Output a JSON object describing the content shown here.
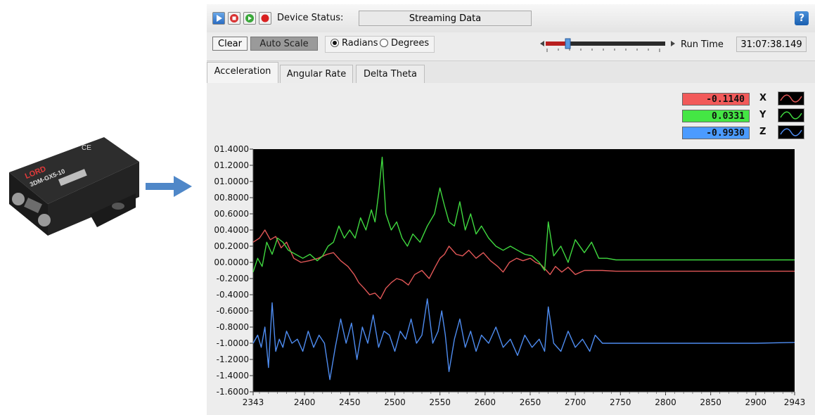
{
  "device": {
    "brand": "LORD",
    "model": "MicroStrain 3DM-GX5-10",
    "model_label": "3DM-GX5-10"
  },
  "toolbar": {
    "device_status_label": "Device Status:",
    "device_status_value": "Streaming Data",
    "help_label": "?",
    "clear_label": "Clear",
    "auto_scale_label": "Auto Scale",
    "radians_label": "Radians",
    "degrees_label": "Degrees",
    "selected_unit": "Radians",
    "run_time_label": "Run Time",
    "run_time_value": "31:07:38.149"
  },
  "tabs": [
    {
      "label": "Acceleration",
      "active": true
    },
    {
      "label": "Angular Rate",
      "active": false
    },
    {
      "label": "Delta Theta",
      "active": false
    }
  ],
  "readouts": [
    {
      "axis": "X",
      "value": "-0.1140",
      "color": "#f25a5a"
    },
    {
      "axis": "Y",
      "value": "0.0331",
      "color": "#44e644"
    },
    {
      "axis": "Z",
      "value": "-0.9930",
      "color": "#4b9bff"
    }
  ],
  "chart_data": {
    "type": "line",
    "ytick_labels": [
      "01.4000",
      "01.2000",
      "01.0000",
      "00.8000",
      "00.6000",
      "00.4000",
      "00.2000",
      "00.0000",
      "-0.2000",
      "-0.4000",
      "-0.6000",
      "-0.8000",
      "-1.0000",
      "-1.2000",
      "-1.4000",
      "-1.6000"
    ],
    "xtick_labels": [
      "2343",
      "2400",
      "2450",
      "2500",
      "2550",
      "2600",
      "2650",
      "2700",
      "2750",
      "2800",
      "2850",
      "2900",
      "2943"
    ],
    "xlim": [
      2343,
      2943
    ],
    "ylim": [
      -1.6,
      1.4
    ],
    "series": [
      {
        "name": "X",
        "color": "#e15757",
        "x": [
          2343,
          2350,
          2356,
          2362,
          2368,
          2374,
          2380,
          2388,
          2396,
          2405,
          2415,
          2425,
          2432,
          2440,
          2448,
          2455,
          2460,
          2466,
          2472,
          2478,
          2484,
          2490,
          2496,
          2502,
          2508,
          2515,
          2522,
          2530,
          2538,
          2545,
          2550,
          2555,
          2560,
          2568,
          2575,
          2582,
          2590,
          2598,
          2606,
          2614,
          2620,
          2627,
          2635,
          2642,
          2650,
          2656,
          2662,
          2668,
          2672,
          2678,
          2685,
          2692,
          2700,
          2710,
          2720,
          2730,
          2745,
          2760,
          2800,
          2850,
          2900,
          2943
        ],
        "y": [
          0.25,
          0.3,
          0.4,
          0.28,
          0.32,
          0.18,
          0.25,
          0.05,
          0.0,
          0.02,
          0.05,
          0.1,
          0.12,
          0.02,
          -0.05,
          -0.15,
          -0.25,
          -0.32,
          -0.4,
          -0.38,
          -0.45,
          -0.32,
          -0.25,
          -0.2,
          -0.22,
          -0.28,
          -0.15,
          -0.1,
          -0.2,
          -0.05,
          0.05,
          0.1,
          0.2,
          0.1,
          0.08,
          0.15,
          0.05,
          0.12,
          0.02,
          -0.05,
          -0.12,
          0.0,
          0.05,
          0.02,
          0.05,
          0.0,
          -0.03,
          -0.1,
          -0.15,
          -0.05,
          -0.12,
          -0.06,
          -0.15,
          -0.1,
          -0.1,
          -0.1,
          -0.11,
          -0.11,
          -0.11,
          -0.11,
          -0.11,
          -0.11
        ]
      },
      {
        "name": "Y",
        "color": "#3fd83f",
        "x": [
          2343,
          2348,
          2353,
          2358,
          2364,
          2370,
          2376,
          2382,
          2390,
          2398,
          2406,
          2414,
          2420,
          2426,
          2432,
          2438,
          2444,
          2450,
          2456,
          2462,
          2468,
          2474,
          2478,
          2482,
          2486,
          2490,
          2496,
          2502,
          2508,
          2514,
          2520,
          2528,
          2536,
          2544,
          2550,
          2555,
          2560,
          2566,
          2572,
          2578,
          2584,
          2590,
          2596,
          2604,
          2612,
          2620,
          2628,
          2636,
          2644,
          2652,
          2660,
          2666,
          2670,
          2676,
          2684,
          2692,
          2700,
          2710,
          2718,
          2726,
          2735,
          2745,
          2760,
          2800,
          2850,
          2900,
          2943
        ],
        "y": [
          -0.12,
          0.05,
          -0.05,
          0.25,
          0.1,
          0.3,
          0.25,
          0.15,
          0.1,
          0.05,
          0.1,
          0.02,
          0.08,
          0.2,
          0.25,
          0.45,
          0.3,
          0.4,
          0.3,
          0.55,
          0.4,
          0.65,
          0.5,
          0.85,
          1.3,
          0.6,
          0.4,
          0.5,
          0.3,
          0.2,
          0.35,
          0.25,
          0.45,
          0.6,
          0.92,
          0.7,
          0.5,
          0.45,
          0.75,
          0.4,
          0.6,
          0.35,
          0.45,
          0.3,
          0.2,
          0.15,
          0.2,
          0.15,
          0.1,
          0.08,
          0.0,
          -0.1,
          0.5,
          0.08,
          0.2,
          0.0,
          0.28,
          0.12,
          0.25,
          0.05,
          0.05,
          0.03,
          0.03,
          0.03,
          0.03,
          0.03,
          0.03
        ]
      },
      {
        "name": "Z",
        "color": "#4e8cf0",
        "x": [
          2343,
          2348,
          2352,
          2356,
          2360,
          2364,
          2368,
          2372,
          2376,
          2380,
          2386,
          2392,
          2398,
          2404,
          2410,
          2416,
          2422,
          2428,
          2434,
          2440,
          2446,
          2452,
          2458,
          2464,
          2470,
          2476,
          2482,
          2488,
          2494,
          2500,
          2506,
          2512,
          2518,
          2524,
          2530,
          2536,
          2542,
          2548,
          2552,
          2556,
          2560,
          2566,
          2572,
          2578,
          2584,
          2590,
          2596,
          2604,
          2612,
          2620,
          2628,
          2636,
          2644,
          2652,
          2660,
          2666,
          2670,
          2676,
          2684,
          2692,
          2700,
          2708,
          2716,
          2722,
          2730,
          2745,
          2760,
          2800,
          2850,
          2900,
          2943
        ],
        "y": [
          -1.0,
          -0.9,
          -1.05,
          -0.8,
          -1.3,
          -0.5,
          -1.1,
          -0.95,
          -1.05,
          -0.85,
          -1.0,
          -0.95,
          -1.1,
          -0.85,
          -1.05,
          -0.9,
          -1.0,
          -1.45,
          -1.05,
          -0.7,
          -1.0,
          -0.75,
          -1.2,
          -0.8,
          -1.0,
          -0.65,
          -1.05,
          -0.85,
          -0.9,
          -1.1,
          -0.85,
          -0.95,
          -0.7,
          -1.0,
          -0.9,
          -0.45,
          -1.0,
          -0.85,
          -0.6,
          -0.9,
          -1.35,
          -0.95,
          -0.7,
          -1.05,
          -0.85,
          -1.1,
          -0.9,
          -1.0,
          -0.8,
          -1.05,
          -0.95,
          -1.15,
          -0.9,
          -1.05,
          -0.95,
          -1.1,
          -0.55,
          -1.0,
          -1.1,
          -0.85,
          -1.05,
          -0.95,
          -1.1,
          -0.9,
          -1.0,
          -1.0,
          -1.0,
          -1.0,
          -1.0,
          -1.0,
          -0.99
        ]
      }
    ]
  }
}
